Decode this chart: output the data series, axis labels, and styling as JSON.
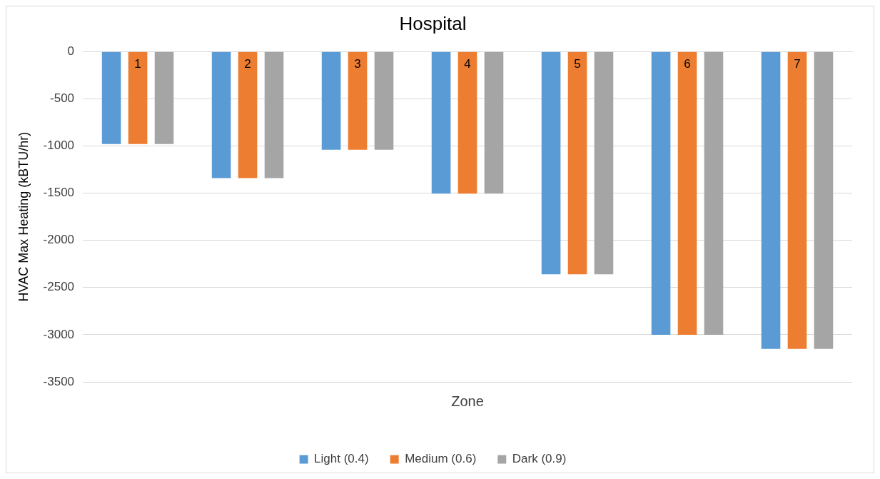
{
  "chart_data": {
    "type": "bar",
    "title": "Hospital",
    "xlabel": "Zone",
    "ylabel": "HVAC Max Heating (kBTU/hr)",
    "categories": [
      "1",
      "2",
      "3",
      "4",
      "5",
      "6",
      "7"
    ],
    "series": [
      {
        "name": "Light (0.4)",
        "color": "#5b9bd5",
        "values": [
          -980,
          -1340,
          -1040,
          -1505,
          -2360,
          -3000,
          -3150
        ]
      },
      {
        "name": "Medium (0.6)",
        "color": "#ed7d31",
        "values": [
          -980,
          -1340,
          -1040,
          -1505,
          -2360,
          -3000,
          -3150
        ]
      },
      {
        "name": "Dark (0.9)",
        "color": "#a5a5a5",
        "values": [
          -980,
          -1340,
          -1040,
          -1505,
          -2360,
          -3000,
          -3150
        ]
      }
    ],
    "ylim": [
      -3500,
      0
    ],
    "yticks": [
      -3500,
      -3000,
      -2500,
      -2000,
      -1500,
      -1000,
      -500,
      0
    ],
    "grid": "y",
    "legend": "bottom"
  }
}
